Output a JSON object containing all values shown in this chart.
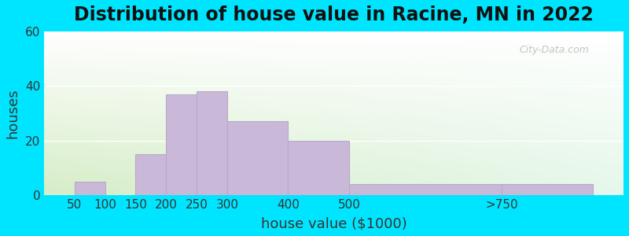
{
  "title": "Distribution of house value in Racine, MN in 2022",
  "xlabel": "house value ($1000)",
  "ylabel": "houses",
  "bar_labels": [
    "50",
    "100",
    "150",
    "200",
    "250",
    "300",
    "400",
    "500",
    ">750"
  ],
  "bar_values": [
    5,
    0,
    15,
    37,
    38,
    27,
    20,
    4,
    4
  ],
  "bar_color": "#c9b8d8",
  "bar_edgecolor": "#b8a8cc",
  "ylim": [
    0,
    60
  ],
  "yticks": [
    0,
    20,
    40,
    60
  ],
  "background_outer": "#00e5ff",
  "background_inner": "#e4f2de",
  "title_fontsize": 17,
  "axis_label_fontsize": 13,
  "tick_fontsize": 11,
  "watermark_text": "City-Data.com",
  "tick_positions": [
    50,
    100,
    150,
    200,
    250,
    300,
    400,
    500,
    750,
    900
  ]
}
